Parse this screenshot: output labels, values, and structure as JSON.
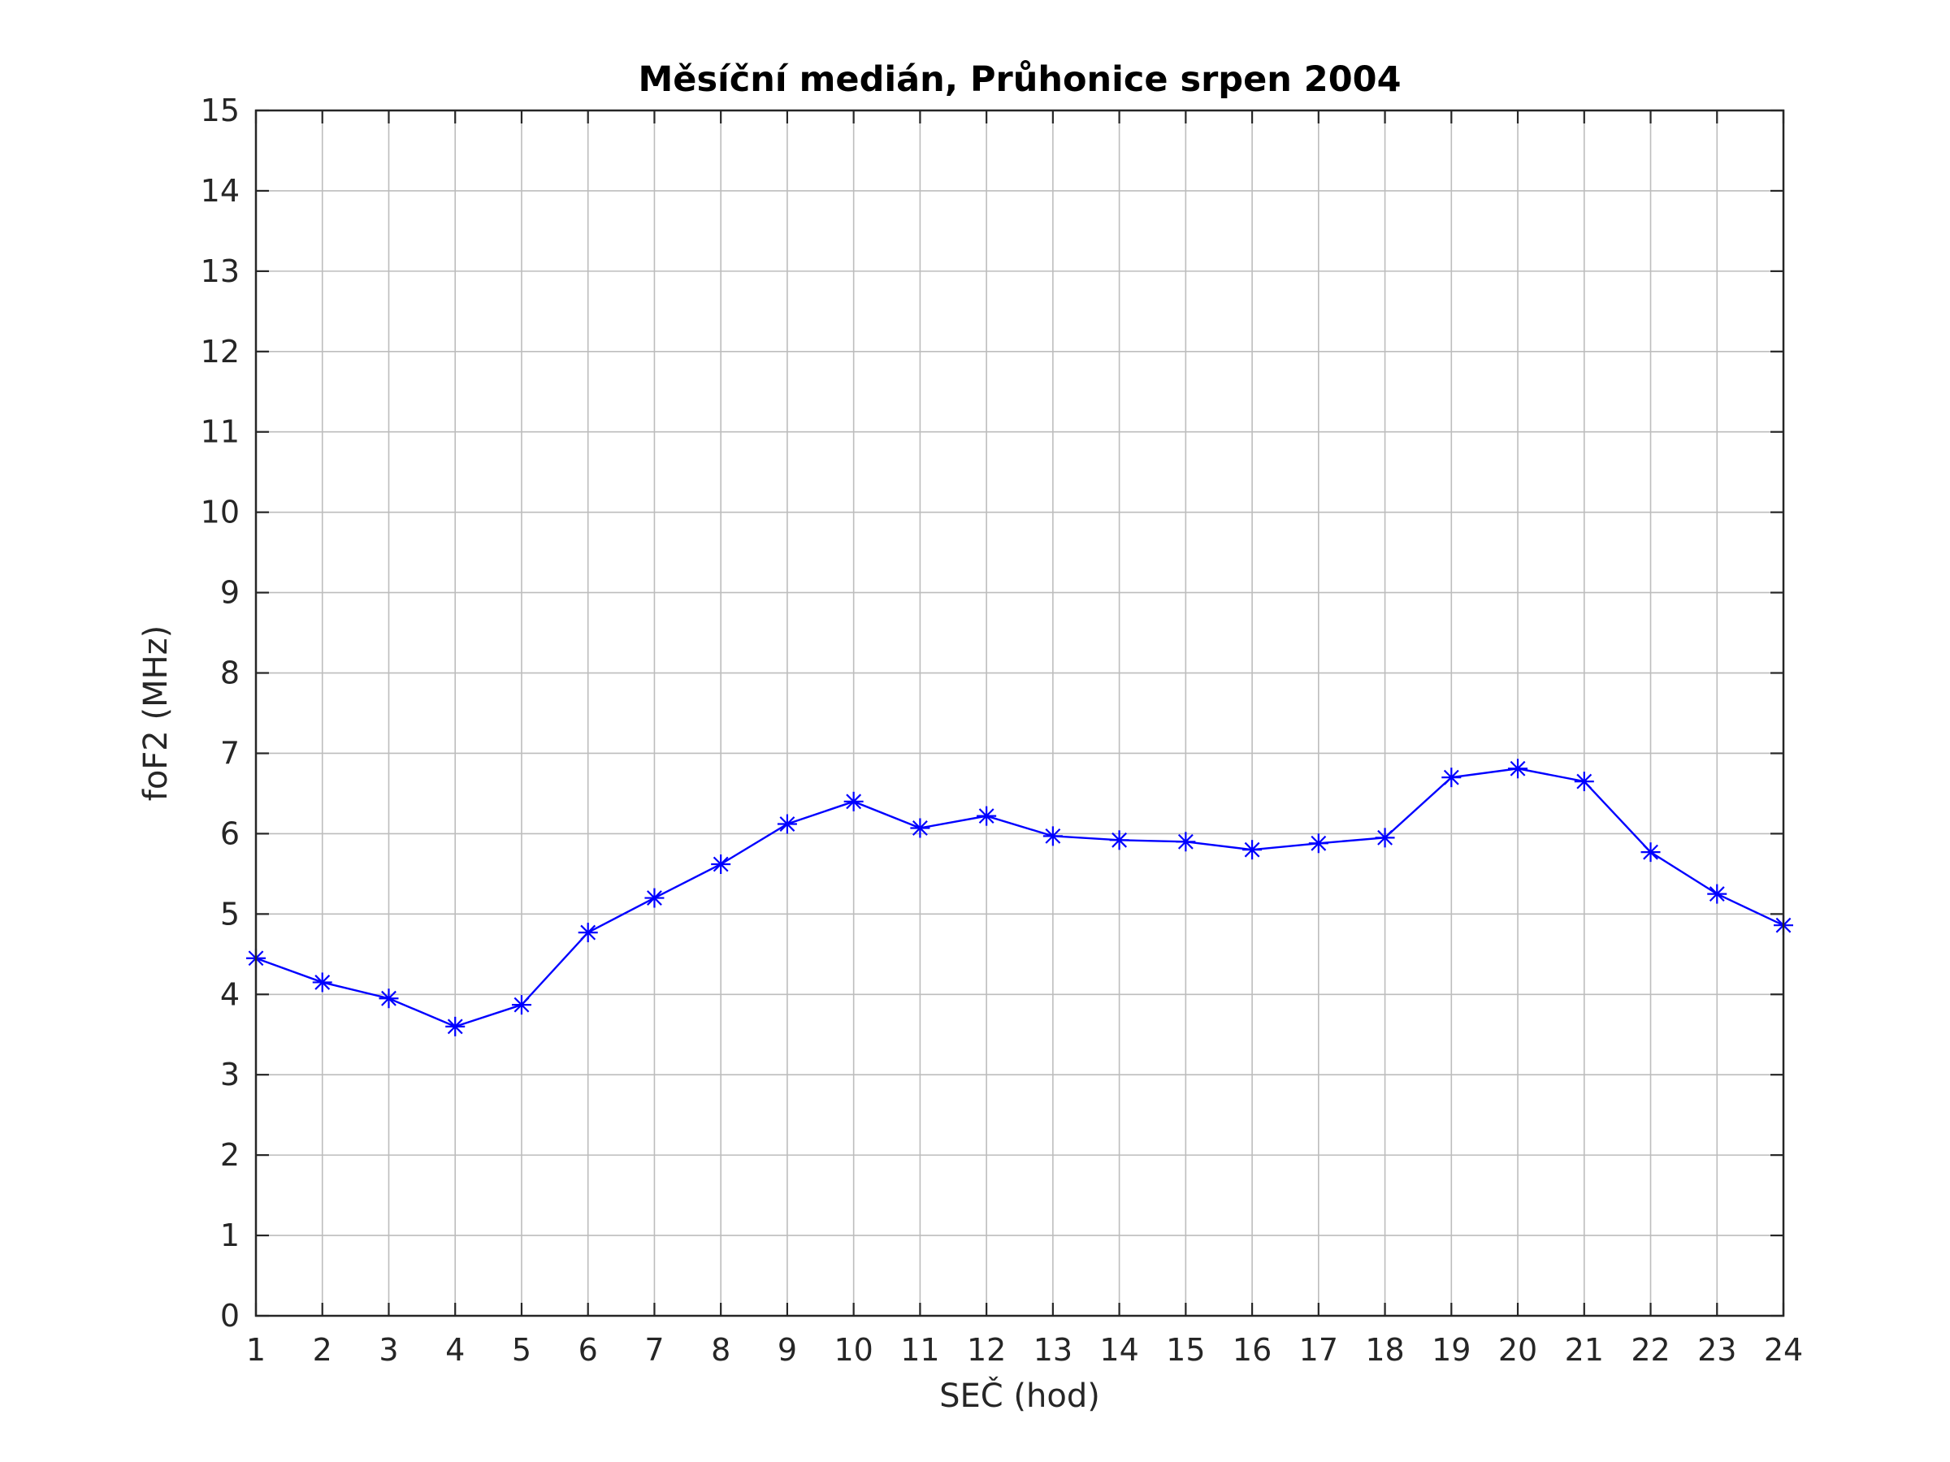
{
  "chart_data": {
    "type": "line",
    "title": "Měsíční medián, Průhonice srpen 2004",
    "xlabel": "SEČ (hod)",
    "ylabel": "foF2 (MHz)",
    "xlim": [
      1,
      24
    ],
    "ylim": [
      0,
      15
    ],
    "xticks": [
      1,
      2,
      3,
      4,
      5,
      6,
      7,
      8,
      9,
      10,
      11,
      12,
      13,
      14,
      15,
      16,
      17,
      18,
      19,
      20,
      21,
      22,
      23,
      24
    ],
    "yticks": [
      0,
      1,
      2,
      3,
      4,
      5,
      6,
      7,
      8,
      9,
      10,
      11,
      12,
      13,
      14,
      15
    ],
    "grid": true,
    "marker": "asterisk",
    "series": [
      {
        "color": "#0000ff",
        "x": [
          1,
          2,
          3,
          4,
          5,
          6,
          7,
          8,
          9,
          10,
          11,
          12,
          13,
          14,
          15,
          16,
          17,
          18,
          19,
          20,
          21,
          22,
          23,
          24
        ],
        "y": [
          4.45,
          4.15,
          3.95,
          3.6,
          3.87,
          4.77,
          5.2,
          5.62,
          6.12,
          6.4,
          6.07,
          6.22,
          5.97,
          5.92,
          5.9,
          5.8,
          5.88,
          5.95,
          6.7,
          6.81,
          6.65,
          5.77,
          5.25,
          4.86
        ]
      }
    ]
  }
}
